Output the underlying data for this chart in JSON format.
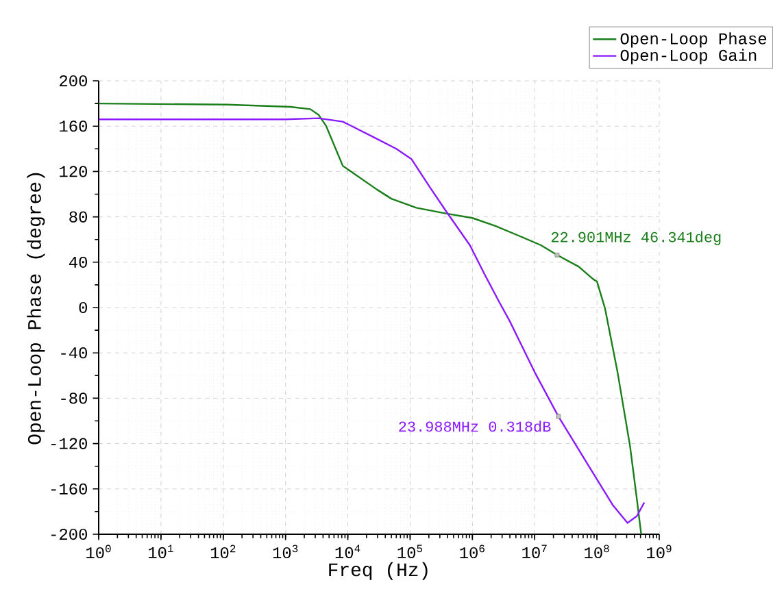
{
  "chart_data": {
    "type": "line",
    "xlabel": "Freq (Hz)",
    "ylabel": "Open-Loop Phase (degree)",
    "log": "x",
    "grid": true,
    "legend": "top right",
    "xlim": [
      1,
      1000000000
    ],
    "xticks": [
      {
        "value": 1,
        "label": "10$^{0}$"
      },
      {
        "value": 10,
        "label": "10$^{1}$"
      },
      {
        "value": 100,
        "label": "10$^{2}$"
      },
      {
        "value": 1000,
        "label": "10$^{3}$"
      },
      {
        "value": 10000,
        "label": "10$^{4}$"
      },
      {
        "value": 100000,
        "label": "10$^{5}$"
      },
      {
        "value": 1000000,
        "label": "10$^{6}$"
      },
      {
        "value": 10000000,
        "label": "10$^{7}$"
      },
      {
        "value": 100000000,
        "label": "10$^{8}$"
      },
      {
        "value": 1000000000,
        "label": "10$^{9}$"
      }
    ],
    "ylim": [
      -200,
      200
    ],
    "yticks": [
      -200,
      -160,
      -120,
      -80,
      -40,
      0,
      40,
      80,
      120,
      160,
      200
    ],
    "series": [
      {
        "name": "Open-Loop Phase",
        "color": "#1a7f1a",
        "x": [
          1,
          115,
          1200,
          2500,
          3400,
          4500,
          8300,
          29500,
          50000,
          126000,
          372000,
          1000000,
          2340000,
          5750000,
          12600000,
          22901000,
          51000000,
          87000000,
          100000000,
          135000000,
          214000000,
          339000000,
          437000000,
          513000000
        ],
        "values": [
          180,
          179,
          177,
          175,
          170,
          160,
          125,
          104,
          96,
          88,
          83,
          79,
          72,
          63,
          55,
          46.341,
          36,
          25,
          23,
          -1,
          -57,
          -122,
          -169,
          -200
        ]
      },
      {
        "name": "Open-Loop Gain",
        "color": "#8b1aff",
        "x": [
          1,
          1000,
          3400,
          8300,
          24500,
          60000,
          105000,
          214000,
          389000,
          912000,
          1580000,
          2690000,
          3980000,
          10000000,
          23988000,
          72400000,
          178000000,
          309000000,
          437000000,
          575000000
        ],
        "values": [
          166,
          166,
          167,
          164,
          151,
          140,
          131,
          105,
          84,
          55,
          29,
          5,
          -12,
          -57,
          -96,
          -139,
          -174,
          -190,
          -184,
          -172
        ]
      }
    ],
    "annotations": [
      {
        "text": "22.901MHz 46.341deg",
        "x": 22901000,
        "y": 46.341
      },
      {
        "text": "23.988MHz 0.318dB",
        "x": 23988000,
        "y": -96
      }
    ]
  }
}
